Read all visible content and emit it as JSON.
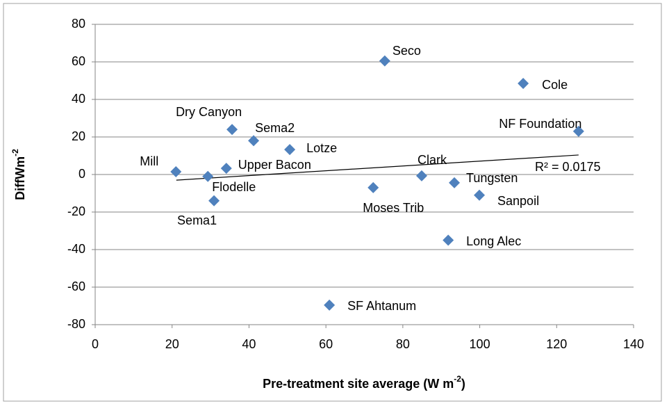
{
  "chart_data": {
    "type": "scatter",
    "x_label": [
      "Pre-treatment site average (W m",
      "-2",
      ")"
    ],
    "y_label": [
      "DiffWm",
      "-2"
    ],
    "color": "#4f81bd",
    "xlim": [
      0,
      140
    ],
    "xticks": [
      0,
      20,
      40,
      60,
      80,
      100,
      120,
      140
    ],
    "ylim": [
      -80,
      80
    ],
    "yticks": [
      -80,
      -60,
      -40,
      -20,
      0,
      20,
      40,
      60,
      80
    ],
    "grid": true,
    "point_labels": [
      "Seco",
      "Cole",
      "NF Foundation",
      "Dry Canyon",
      "Sema2",
      "Lotze",
      "Mill",
      "Upper Bacon",
      "Flodelle",
      "Sema1",
      "Moses Trib",
      "Clark",
      "Tungsten",
      "Sanpoil",
      "Long Alec",
      "SF Ahtanum"
    ],
    "x": [
      75.3,
      111.3,
      125.7,
      35.6,
      41.2,
      50.6,
      21,
      34.1,
      29.3,
      30.9,
      72.3,
      84.9,
      93.4,
      99.9,
      91.8,
      60.9
    ],
    "values": [
      60.5,
      48.5,
      23,
      24,
      18,
      13.3,
      1.5,
      3.3,
      -1,
      -14,
      -7,
      -0.7,
      -4.4,
      -11,
      -35,
      -69.6
    ],
    "trendline": {
      "x": [
        21.1,
        125.7
      ],
      "y": [
        -3,
        10.4
      ],
      "label": "R² = 0.0175"
    }
  }
}
